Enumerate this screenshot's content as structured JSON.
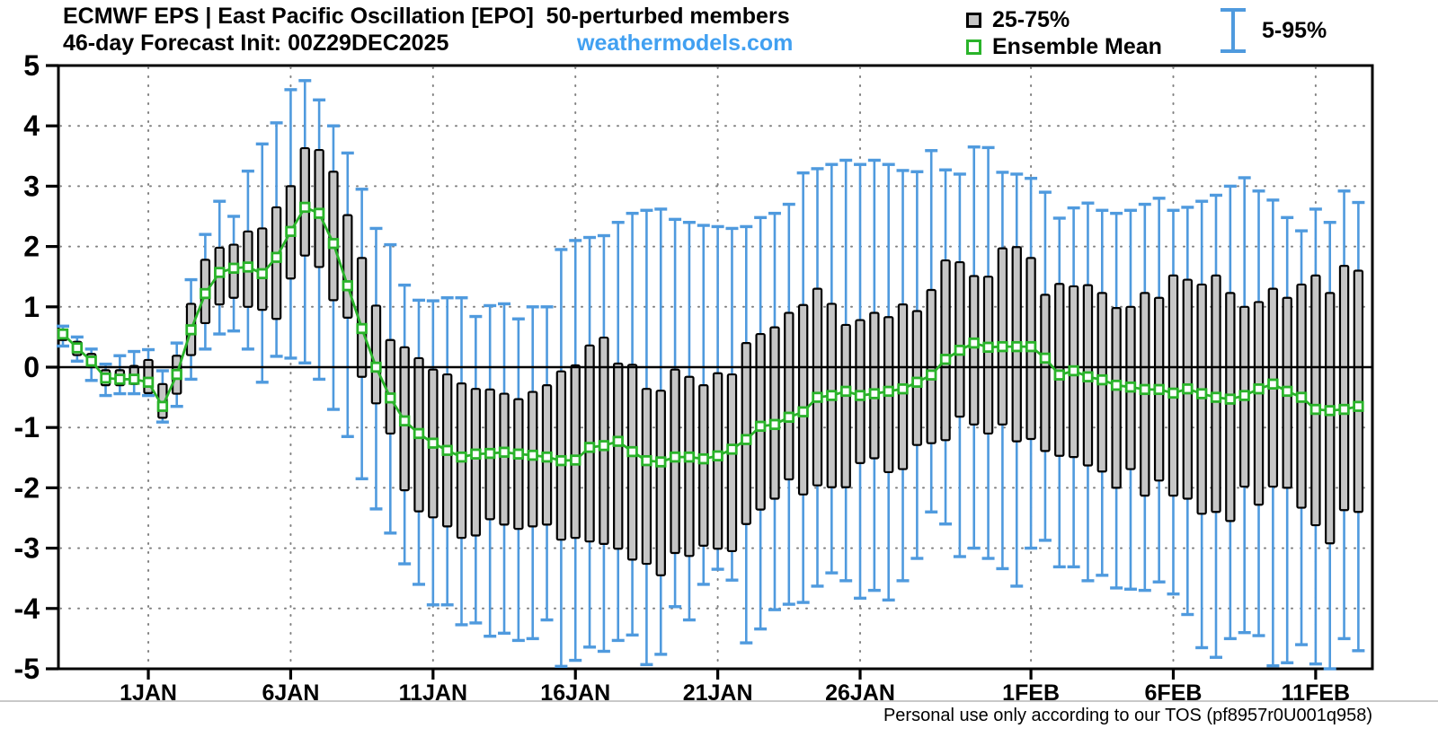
{
  "header": {
    "title_line1": "ECMWF EPS | East Pacific Oscillation [EPO]  50-perturbed members",
    "title_line2": "46-day Forecast Init: 00Z29DEC2025",
    "watermark": "weathermodels.com",
    "legend": {
      "box_label": "25-75%",
      "mean_label": "Ensemble Mean",
      "whisker_label": "5-95%"
    }
  },
  "footer": {
    "tos_text": "Personal use only according to our TOS (pf8957r0U001q958)"
  },
  "chart_data": {
    "type": "box-whisker-timeseries",
    "title": "ECMWF EPS | East Pacific Oscillation [EPO] 50-perturbed members",
    "subtitle": "46-day Forecast Init: 00Z29DEC2025",
    "start_label": "00Z29DEC2025",
    "step_hours": 12,
    "n_points": 92,
    "ylim": [
      -5,
      5
    ],
    "y_ticks": [
      -5,
      -4,
      -3,
      -2,
      -1,
      0,
      1,
      2,
      3,
      4,
      5
    ],
    "x_tick_labels": [
      "1JAN",
      "6JAN",
      "11JAN",
      "16JAN",
      "21JAN",
      "26JAN",
      "1FEB",
      "6FEB",
      "11FEB"
    ],
    "x_tick_indices": [
      6,
      16,
      26,
      36,
      46,
      56,
      68,
      78,
      88
    ],
    "grid": true,
    "legend_position": "top-right",
    "colors": {
      "whisker": "#4f9ade",
      "box_fill": "#c6c6c6",
      "box_edge": "#000000",
      "mean": "#2ab32a",
      "watermark_blue": "#41a0f1",
      "grid": "#808080",
      "zero_line": "#000000"
    },
    "series": {
      "mean": [
        0.55,
        0.32,
        0.1,
        -0.18,
        -0.2,
        -0.2,
        -0.25,
        -0.65,
        -0.12,
        0.62,
        1.22,
        1.57,
        1.64,
        1.66,
        1.55,
        1.82,
        2.25,
        2.65,
        2.55,
        2.05,
        1.35,
        0.64,
        0.0,
        -0.51,
        -0.89,
        -1.1,
        -1.26,
        -1.38,
        -1.49,
        -1.44,
        -1.43,
        -1.41,
        -1.44,
        -1.46,
        -1.49,
        -1.55,
        -1.54,
        -1.33,
        -1.3,
        -1.23,
        -1.4,
        -1.55,
        -1.57,
        -1.49,
        -1.49,
        -1.52,
        -1.47,
        -1.36,
        -1.2,
        -0.98,
        -0.95,
        -0.83,
        -0.74,
        -0.5,
        -0.47,
        -0.4,
        -0.47,
        -0.44,
        -0.4,
        -0.36,
        -0.25,
        -0.13,
        0.13,
        0.28,
        0.4,
        0.33,
        0.34,
        0.34,
        0.34,
        0.15,
        -0.13,
        -0.06,
        -0.16,
        -0.21,
        -0.3,
        -0.33,
        -0.37,
        -0.37,
        -0.43,
        -0.36,
        -0.44,
        -0.5,
        -0.53,
        -0.47,
        -0.36,
        -0.28,
        -0.4,
        -0.5,
        -0.7,
        -0.72,
        -0.7,
        -0.65
      ],
      "p25": [
        0.45,
        0.2,
        0.0,
        -0.3,
        -0.3,
        -0.28,
        -0.43,
        -0.84,
        -0.44,
        0.2,
        0.73,
        1.04,
        1.15,
        1.0,
        0.95,
        0.8,
        1.47,
        1.85,
        1.66,
        1.11,
        0.82,
        -0.16,
        -0.6,
        -1.1,
        -2.04,
        -2.39,
        -2.49,
        -2.64,
        -2.83,
        -2.79,
        -2.52,
        -2.61,
        -2.68,
        -2.64,
        -2.61,
        -2.86,
        -2.83,
        -2.89,
        -2.93,
        -3.01,
        -3.19,
        -3.26,
        -3.45,
        -3.08,
        -3.13,
        -2.96,
        -3.01,
        -3.05,
        -2.6,
        -2.36,
        -2.18,
        -1.86,
        -2.11,
        -1.96,
        -1.99,
        -1.99,
        -1.59,
        -1.51,
        -1.74,
        -1.69,
        -1.29,
        -1.26,
        -1.21,
        -0.82,
        -0.95,
        -1.1,
        -0.95,
        -1.23,
        -1.19,
        -1.39,
        -1.47,
        -1.49,
        -1.63,
        -1.73,
        -2.0,
        -1.69,
        -2.13,
        -1.88,
        -2.13,
        -2.18,
        -2.43,
        -2.4,
        -2.55,
        -1.98,
        -2.28,
        -1.98,
        -2.0,
        -2.33,
        -2.62,
        -2.92,
        -2.37,
        -2.4
      ],
      "p75": [
        0.62,
        0.42,
        0.22,
        -0.05,
        -0.05,
        0.02,
        0.12,
        -0.28,
        0.19,
        1.05,
        1.78,
        1.98,
        2.03,
        2.25,
        2.3,
        2.65,
        3.0,
        3.63,
        3.6,
        3.24,
        2.52,
        1.81,
        1.02,
        0.45,
        0.33,
        0.15,
        -0.04,
        -0.12,
        -0.27,
        -0.36,
        -0.37,
        -0.44,
        -0.53,
        -0.41,
        -0.3,
        -0.07,
        0.03,
        0.36,
        0.49,
        0.06,
        0.04,
        -0.36,
        -0.39,
        -0.04,
        -0.16,
        -0.3,
        -0.1,
        -0.12,
        0.4,
        0.55,
        0.66,
        0.9,
        1.03,
        1.3,
        1.05,
        0.7,
        0.78,
        0.9,
        0.83,
        1.04,
        0.93,
        1.28,
        1.77,
        1.74,
        1.51,
        1.5,
        1.97,
        1.99,
        1.81,
        1.2,
        1.38,
        1.34,
        1.36,
        1.23,
        0.98,
        1.0,
        1.23,
        1.15,
        1.52,
        1.45,
        1.37,
        1.52,
        1.23,
        1.0,
        1.08,
        1.3,
        1.15,
        1.37,
        1.52,
        1.23,
        1.68,
        1.6
      ],
      "p5": [
        0.35,
        0.1,
        -0.22,
        -0.47,
        -0.44,
        -0.44,
        -0.47,
        -0.91,
        -0.65,
        -0.2,
        0.3,
        0.55,
        0.6,
        0.3,
        -0.25,
        0.18,
        0.15,
        0.07,
        -0.2,
        -0.7,
        -1.15,
        -1.85,
        -2.35,
        -2.75,
        -3.26,
        -3.6,
        -3.94,
        -3.94,
        -4.27,
        -4.24,
        -4.46,
        -4.41,
        -4.53,
        -4.5,
        -4.19,
        -4.96,
        -4.86,
        -4.64,
        -4.71,
        -4.53,
        -4.44,
        -4.93,
        -4.76,
        -3.97,
        -4.19,
        -3.6,
        -3.35,
        -3.53,
        -4.57,
        -4.34,
        -4.02,
        -3.93,
        -3.9,
        -3.63,
        -3.41,
        -3.54,
        -3.83,
        -3.7,
        -3.86,
        -3.54,
        -3.17,
        -2.4,
        -2.6,
        -3.14,
        -3.0,
        -3.17,
        -3.34,
        -3.63,
        -3.0,
        -2.87,
        -3.31,
        -3.31,
        -3.54,
        -3.45,
        -3.66,
        -3.68,
        -3.7,
        -3.56,
        -3.76,
        -4.1,
        -4.65,
        -4.81,
        -4.5,
        -4.4,
        -4.45,
        -4.95,
        -4.9,
        -4.6,
        -4.92,
        -5.0,
        -4.5,
        -4.7
      ],
      "p95": [
        0.68,
        0.5,
        0.3,
        0.05,
        0.19,
        0.26,
        0.29,
        -0.06,
        0.4,
        1.45,
        2.2,
        2.75,
        2.5,
        3.25,
        3.7,
        4.05,
        4.6,
        4.75,
        4.43,
        4.0,
        3.55,
        2.95,
        2.3,
        2.03,
        1.36,
        1.11,
        1.1,
        1.15,
        1.15,
        0.84,
        1.02,
        1.05,
        0.8,
        1.0,
        1.0,
        1.95,
        2.1,
        2.15,
        2.18,
        2.4,
        2.55,
        2.6,
        2.62,
        2.45,
        2.4,
        2.35,
        2.33,
        2.3,
        2.33,
        2.48,
        2.55,
        2.7,
        3.22,
        3.29,
        3.36,
        3.43,
        3.36,
        3.43,
        3.36,
        3.26,
        3.24,
        3.59,
        3.27,
        3.2,
        3.65,
        3.64,
        3.23,
        3.2,
        3.13,
        2.9,
        2.47,
        2.64,
        2.72,
        2.6,
        2.55,
        2.6,
        2.7,
        2.8,
        2.6,
        2.65,
        2.75,
        2.85,
        3.0,
        3.14,
        2.92,
        2.77,
        2.48,
        2.26,
        2.62,
        2.4,
        2.92,
        2.73
      ]
    }
  }
}
